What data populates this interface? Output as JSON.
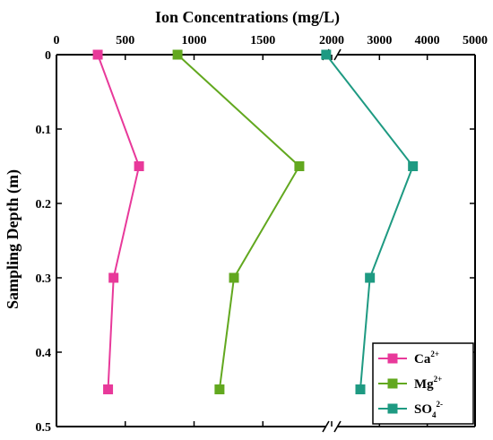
{
  "chart_data": {
    "type": "line",
    "title": "",
    "xlabel": "Ion Concentrations (mg/L)",
    "ylabel": "Sampling Depth (m)",
    "x_axis_position": "top",
    "x_axis_broken": true,
    "x_segments": [
      {
        "range": [
          0,
          2000
        ],
        "ticks": [
          0,
          500,
          1000,
          1500,
          2000
        ],
        "tick_labels": [
          "0",
          "500",
          "1000",
          "1500",
          "2000"
        ]
      },
      {
        "range": [
          2000,
          5000
        ],
        "ticks": [
          3000,
          4000,
          5000
        ],
        "tick_labels": [
          "3000",
          "4000",
          "5000"
        ]
      }
    ],
    "ylim": [
      0,
      0.5
    ],
    "y_inverted": true,
    "y_ticks": [
      0,
      0.1,
      0.2,
      0.3,
      0.4,
      0.5
    ],
    "y_tick_labels": [
      "0",
      "0.1",
      "0.2",
      "0.3",
      "0.4",
      "0.5"
    ],
    "grid": false,
    "legend_position": "bottom-right",
    "series": [
      {
        "name": "Ca2+",
        "base": "Ca",
        "sup": "2+",
        "sub": "",
        "color": "#e8399a",
        "points": [
          {
            "x": 300,
            "y": 0
          },
          {
            "x": 600,
            "y": 0.15
          },
          {
            "x": 415,
            "y": 0.3
          },
          {
            "x": 375,
            "y": 0.45
          }
        ]
      },
      {
        "name": "Mg2+",
        "base": "Mg",
        "sup": "2+",
        "sub": "",
        "color": "#62a81f",
        "points": [
          {
            "x": 880,
            "y": 0
          },
          {
            "x": 1765,
            "y": 0.15
          },
          {
            "x": 1290,
            "y": 0.3
          },
          {
            "x": 1185,
            "y": 0.45
          }
        ]
      },
      {
        "name": "SO42-",
        "base": "SO",
        "sup": "2-",
        "sub": "4",
        "color": "#1e9a82",
        "points": [
          {
            "x": 1960,
            "y": 0
          },
          {
            "x": 3700,
            "y": 0.15
          },
          {
            "x": 2800,
            "y": 0.3
          },
          {
            "x": 2600,
            "y": 0.45
          }
        ]
      }
    ]
  }
}
